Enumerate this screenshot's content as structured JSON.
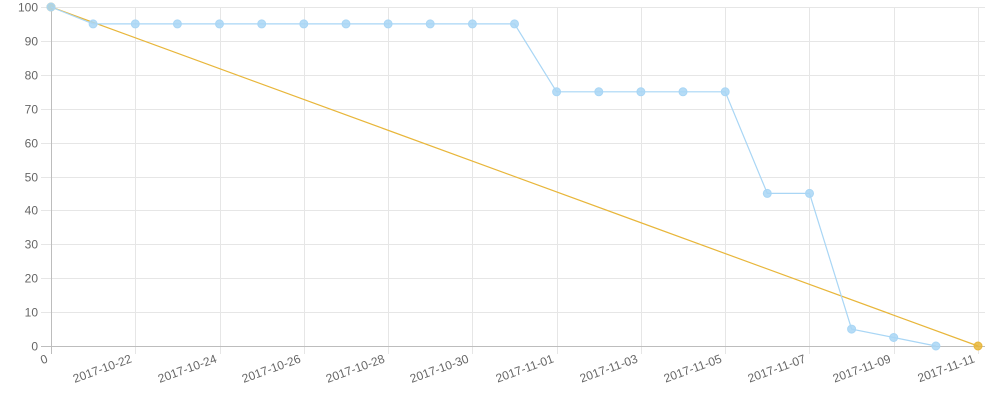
{
  "chart_data": {
    "type": "line",
    "title": "",
    "xlabel": "",
    "ylabel": "",
    "ylim": [
      0,
      100
    ],
    "y_ticks": [
      "0",
      "10",
      "20",
      "30",
      "40",
      "50",
      "60",
      "70",
      "80",
      "90",
      "100"
    ],
    "x_ticks": [
      "0",
      "2017-10-22",
      "2017-10-24",
      "2017-10-26",
      "2017-10-28",
      "2017-10-30",
      "2017-11-01",
      "2017-11-03",
      "2017-11-05",
      "2017-11-07",
      "2017-11-09",
      "2017-11-11"
    ],
    "x": [
      "2017-10-20",
      "2017-10-21",
      "2017-10-22",
      "2017-10-23",
      "2017-10-24",
      "2017-10-25",
      "2017-10-26",
      "2017-10-27",
      "2017-10-28",
      "2017-10-29",
      "2017-10-30",
      "2017-10-31",
      "2017-11-01",
      "2017-11-02",
      "2017-11-03",
      "2017-11-04",
      "2017-11-05",
      "2017-11-06",
      "2017-11-07",
      "2017-11-08",
      "2017-11-09",
      "2017-11-10",
      "2017-11-11"
    ],
    "grid": true,
    "legend": "none",
    "series": [
      {
        "color": "#a9d6f5",
        "values": [
          100,
          95,
          95,
          95,
          95,
          95,
          95,
          95,
          95,
          95,
          95,
          95,
          75,
          75,
          75,
          75,
          75,
          45,
          45,
          5,
          2.5,
          0,
          null
        ]
      },
      {
        "color": "#e8b63a",
        "values": [
          100,
          null,
          null,
          null,
          null,
          null,
          null,
          null,
          null,
          null,
          null,
          null,
          null,
          null,
          null,
          null,
          null,
          null,
          null,
          null,
          null,
          null,
          0
        ]
      }
    ]
  }
}
